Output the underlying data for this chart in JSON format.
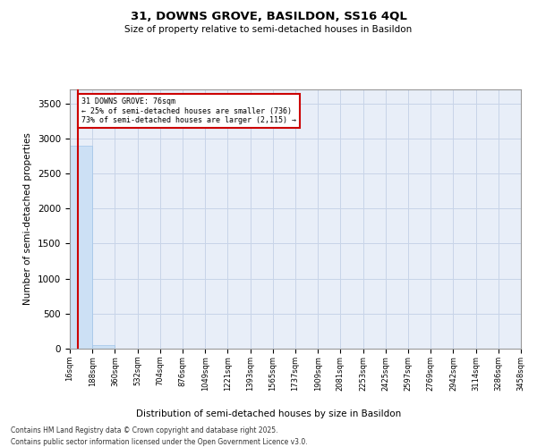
{
  "title": "31, DOWNS GROVE, BASILDON, SS16 4QL",
  "subtitle": "Size of property relative to semi-detached houses in Basildon",
  "xlabel": "Distribution of semi-detached houses by size in Basildon",
  "ylabel": "Number of semi-detached properties",
  "property_size": 76,
  "annotation_line1": "31 DOWNS GROVE: 76sqm",
  "annotation_line2": "← 25% of semi-detached houses are smaller (736)",
  "annotation_line3": "73% of semi-detached houses are larger (2,115) →",
  "bin_edges": [
    16,
    188,
    360,
    532,
    704,
    876,
    1049,
    1221,
    1393,
    1565,
    1737,
    1909,
    2081,
    2253,
    2425,
    2597,
    2769,
    2942,
    3114,
    3286,
    3458
  ],
  "bin_labels": [
    "16sqm",
    "188sqm",
    "360sqm",
    "532sqm",
    "704sqm",
    "876sqm",
    "1049sqm",
    "1221sqm",
    "1393sqm",
    "1565sqm",
    "1737sqm",
    "1909sqm",
    "2081sqm",
    "2253sqm",
    "2425sqm",
    "2597sqm",
    "2769sqm",
    "2942sqm",
    "3114sqm",
    "3286sqm",
    "3458sqm"
  ],
  "bar_heights": [
    2890,
    55,
    5,
    2,
    1,
    0,
    0,
    0,
    0,
    0,
    0,
    0,
    0,
    0,
    0,
    0,
    0,
    0,
    0,
    0
  ],
  "bar_color": "#cce0f5",
  "bar_edge_color": "#a0c4e8",
  "grid_color": "#c8d4e8",
  "background_color": "#e8eef8",
  "red_line_color": "#cc0000",
  "annotation_box_color": "#cc0000",
  "ylim": [
    0,
    3700
  ],
  "yticks": [
    0,
    500,
    1000,
    1500,
    2000,
    2500,
    3000,
    3500
  ],
  "footer_line1": "Contains HM Land Registry data © Crown copyright and database right 2025.",
  "footer_line2": "Contains public sector information licensed under the Open Government Licence v3.0."
}
